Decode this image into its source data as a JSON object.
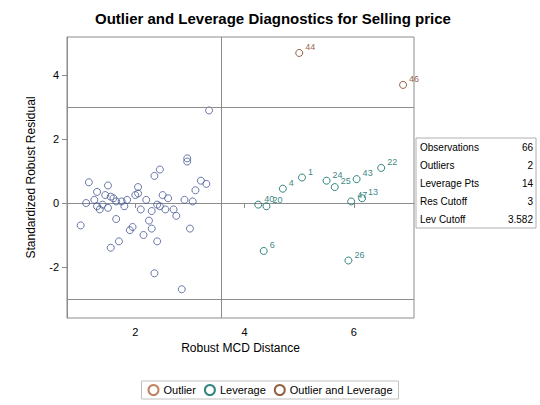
{
  "chart_data": {
    "type": "scatter",
    "title": "Outlier and Leverage Diagnostics for Selling price",
    "x_label": "Robust MCD Distance",
    "y_label": "Standardized Robust Residual",
    "xlim": [
      0.75,
      7.1
    ],
    "xticks": [
      2,
      4,
      6
    ],
    "ylim": [
      -3.6,
      5.2
    ],
    "yticks": [
      -2,
      0,
      2,
      4
    ],
    "grid": false,
    "legend": "bottom",
    "marker": "circle",
    "reference_lines": {
      "x": [
        3.582
      ],
      "y": [
        -3,
        3
      ]
    },
    "inset": [
      {
        "label": "Observations",
        "value": 66
      },
      {
        "label": "Outliers",
        "value": 2
      },
      {
        "label": "Leverage Pts",
        "value": 14
      },
      {
        "label": "Res Cutoff",
        "value": 3
      },
      {
        "label": "Lev Cutoff",
        "value": 3.582
      }
    ],
    "series": [
      {
        "color": "#445694",
        "x": [
          1.0,
          1.1,
          1.15,
          1.25,
          1.3,
          1.3,
          1.35,
          1.4,
          1.45,
          1.5,
          1.5,
          1.55,
          1.55,
          1.6,
          1.65,
          1.65,
          1.7,
          1.75,
          1.8,
          1.85,
          1.9,
          1.95,
          2.0,
          2.05,
          2.05,
          2.1,
          2.15,
          2.2,
          2.25,
          2.3,
          2.3,
          2.35,
          2.35,
          2.4,
          2.4,
          2.45,
          2.45,
          2.5,
          2.55,
          2.6,
          2.7,
          2.75,
          2.85,
          2.9,
          2.95,
          2.95,
          3.0,
          3.05,
          3.1,
          3.2,
          3.3,
          3.35
        ],
        "values": [
          -0.7,
          0.0,
          0.65,
          0.1,
          -0.1,
          0.35,
          -0.2,
          -0.05,
          0.25,
          -0.15,
          0.55,
          0.2,
          -1.4,
          0.15,
          -0.5,
          0.05,
          -1.2,
          0.05,
          -0.1,
          0.1,
          -0.85,
          -0.75,
          0.25,
          0.5,
          0.3,
          -0.2,
          -1.0,
          0.1,
          -0.55,
          -0.8,
          -0.25,
          -2.2,
          0.85,
          -1.2,
          -0.05,
          1.05,
          -0.1,
          0.25,
          -0.2,
          0.15,
          -0.2,
          -0.4,
          -2.7,
          0.1,
          1.3,
          1.4,
          -0.8,
          0.05,
          0.4,
          0.7,
          0.6,
          2.9
        ]
      },
      {
        "name": "Outlier",
        "color": "#B0613A",
        "x": [],
        "values": [],
        "labels": []
      },
      {
        "name": "Leverage",
        "color": "#01665E",
        "x": [
          5.05,
          5.5,
          6.5,
          4.7,
          6.05,
          4.25,
          4.4,
          5.65,
          5.95,
          6.15,
          4.35,
          5.9
        ],
        "values": [
          0.8,
          0.7,
          1.1,
          0.45,
          0.75,
          -0.05,
          -0.1,
          0.5,
          0.05,
          0.15,
          -1.5,
          -1.8
        ],
        "labels": [
          "1",
          "24",
          "22",
          "4",
          "43",
          "40",
          "20",
          "25",
          "47",
          "13",
          "6",
          "26"
        ]
      },
      {
        "name": "Outlier and Leverage",
        "color": "#7B3A14",
        "x": [
          5.0,
          6.9
        ],
        "values": [
          4.7,
          3.7
        ],
        "labels": [
          "44",
          "46"
        ]
      }
    ]
  }
}
